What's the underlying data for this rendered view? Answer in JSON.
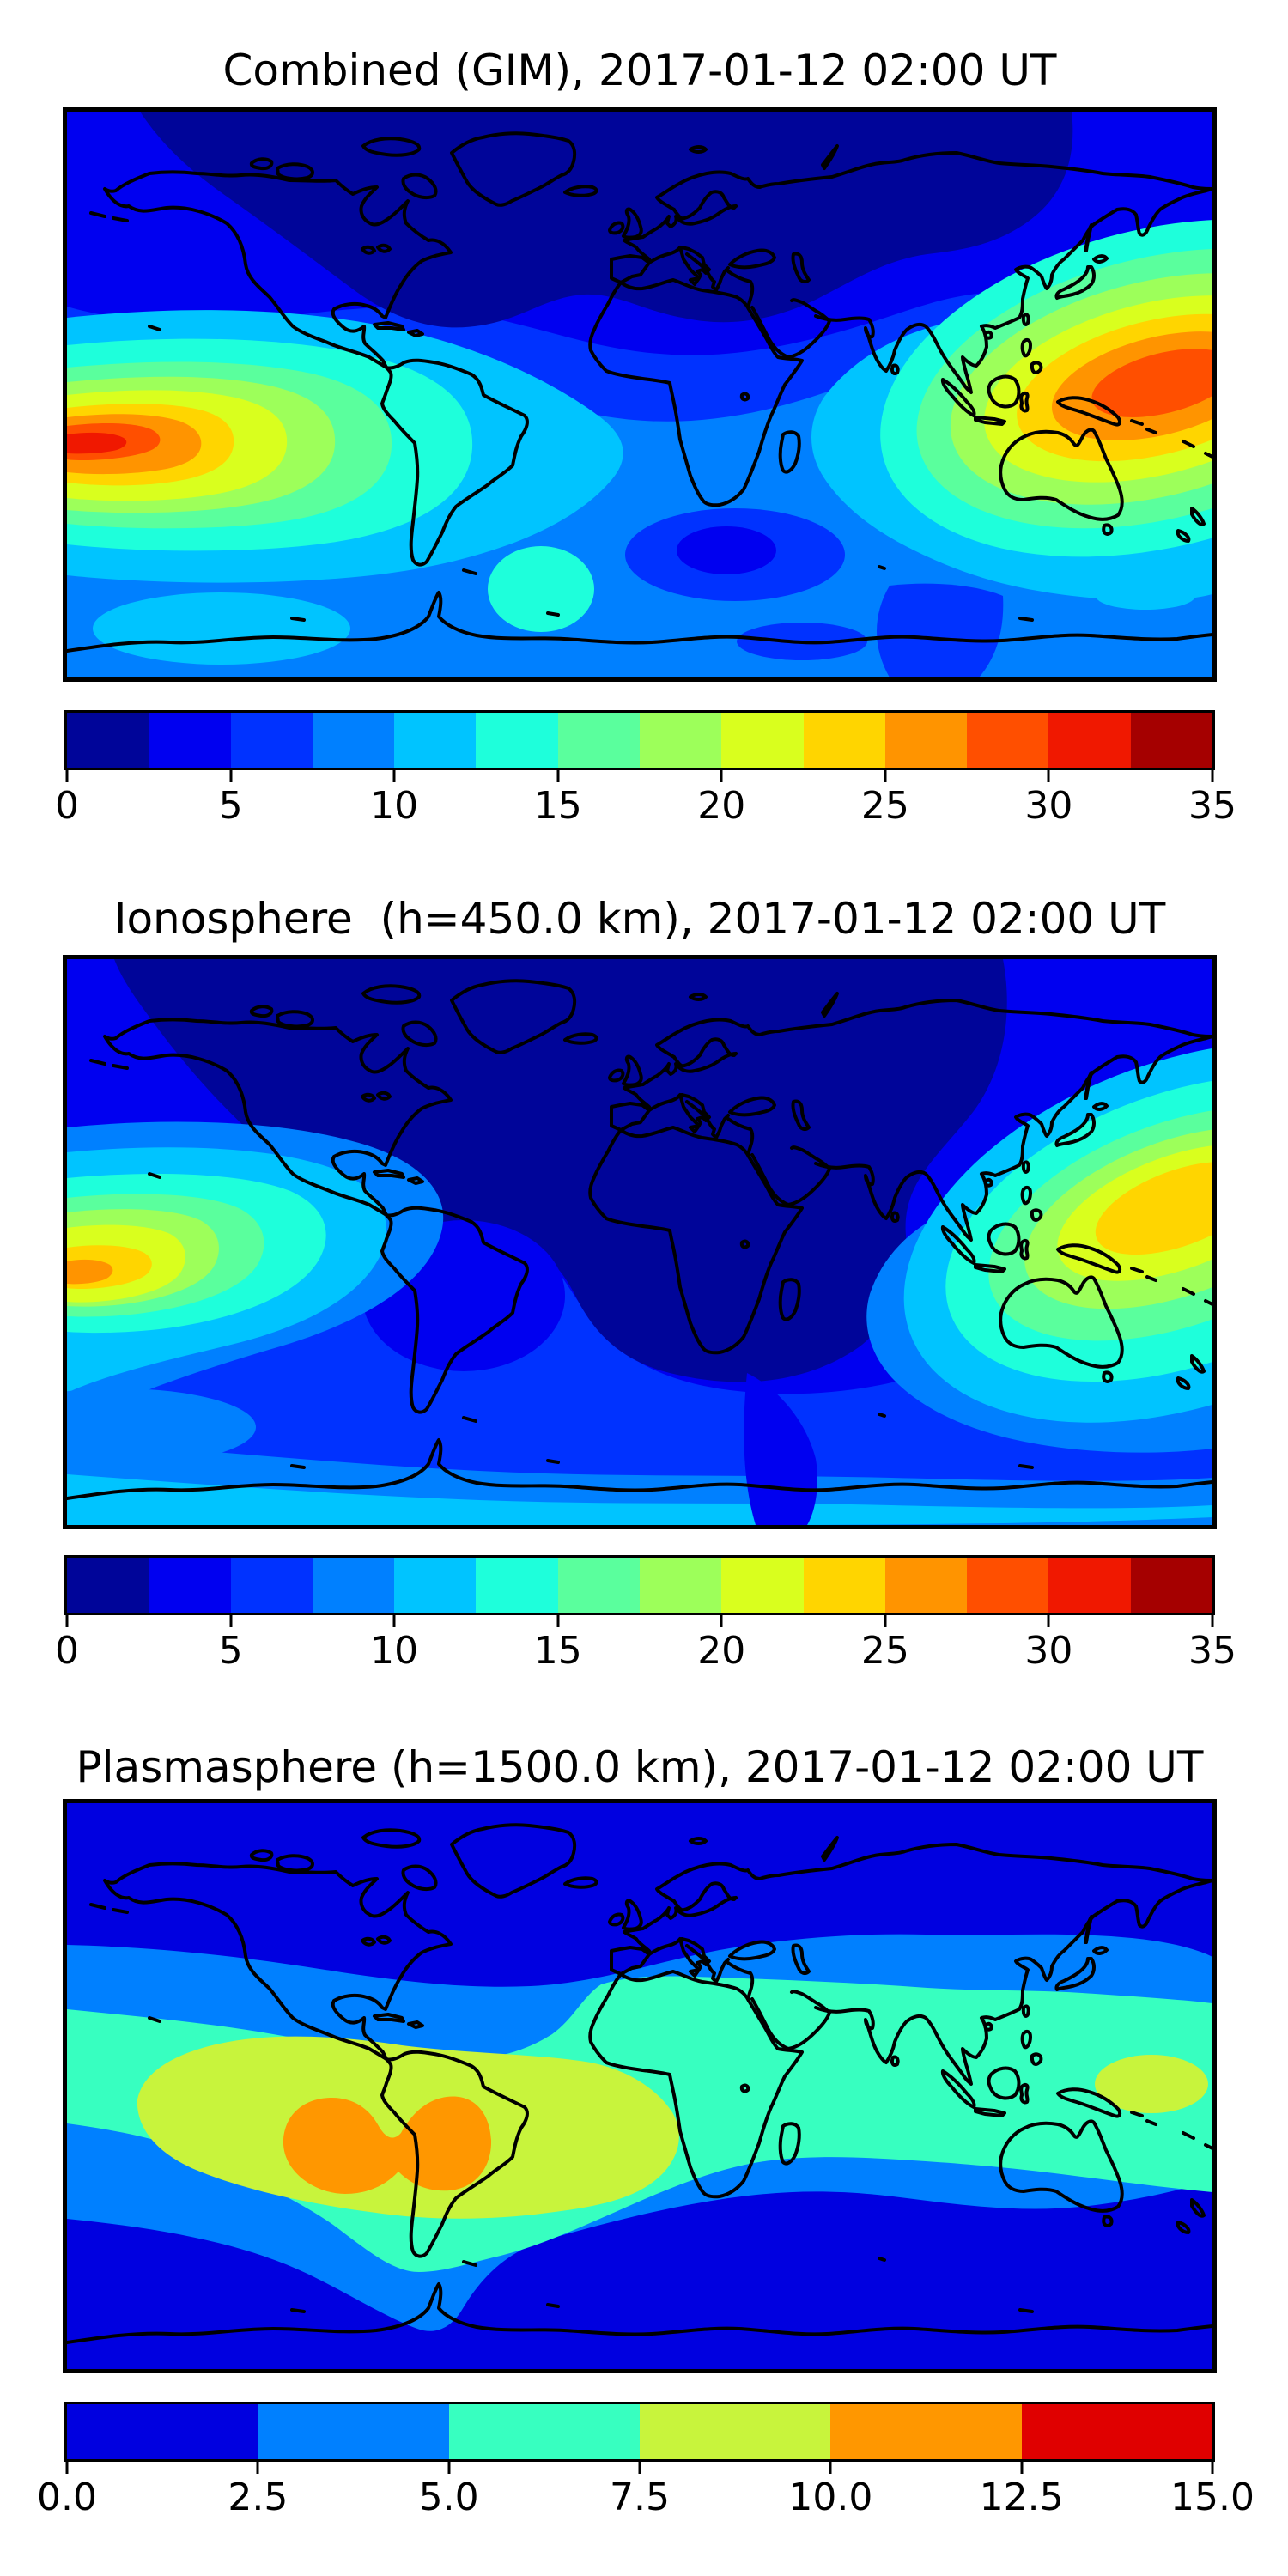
{
  "figure": {
    "background": "#ffffff",
    "frame_color": "#000000",
    "coastline_color": "#000000"
  },
  "panels": [
    {
      "id": "combined-gim",
      "title": "Combined (GIM), 2017-01-12 02:00 UT",
      "colorbar": {
        "orientation": "horizontal",
        "min": 0,
        "max": 35,
        "tick_labels": [
          "0",
          "5",
          "10",
          "15",
          "20",
          "25",
          "30",
          "35"
        ],
        "segment_colors": [
          "#000599",
          "#0000F0",
          "#0032FF",
          "#0080FF",
          "#00C4FF",
          "#1EFFDB",
          "#5AFF9D",
          "#9DFF5A",
          "#D9FF1E",
          "#FFD500",
          "#FF9400",
          "#FF4F00",
          "#F01800",
          "#A50000"
        ]
      }
    },
    {
      "id": "ionosphere",
      "title": "Ionosphere  (h=450.0 km), 2017-01-12 02:00 UT",
      "colorbar": {
        "orientation": "horizontal",
        "min": 0,
        "max": 35,
        "tick_labels": [
          "0",
          "5",
          "10",
          "15",
          "20",
          "25",
          "30",
          "35"
        ],
        "segment_colors": [
          "#000599",
          "#0000F0",
          "#0032FF",
          "#0080FF",
          "#00C4FF",
          "#1EFFDB",
          "#5AFF9D",
          "#9DFF5A",
          "#D9FF1E",
          "#FFD500",
          "#FF9400",
          "#FF4F00",
          "#F01800",
          "#A50000"
        ]
      }
    },
    {
      "id": "plasmasphere",
      "title": "Plasmasphere (h=1500.0 km), 2017-01-12 02:00 UT",
      "colorbar": {
        "orientation": "horizontal",
        "min": 0,
        "max": 15,
        "tick_labels": [
          "0.0",
          "2.5",
          "5.0",
          "7.5",
          "10.0",
          "12.5",
          "15.0"
        ],
        "segment_colors": [
          "#0000E0",
          "#0080FF",
          "#37FFC0",
          "#C8F43C",
          "#FF9700",
          "#E00000"
        ]
      }
    }
  ],
  "chart_data": [
    {
      "type": "heatmap",
      "subtype": "filled_contour_world_map",
      "title": "Combined (GIM), 2017-01-12 02:00 UT",
      "colormap": "jet",
      "value_range": [
        0,
        35
      ],
      "contour_interval": 2.5,
      "colorbar_ticks": [
        0,
        5,
        10,
        15,
        20,
        25,
        30,
        35
      ],
      "map_extent": {
        "lon": [
          -180,
          180
        ],
        "lat": [
          -90,
          90
        ]
      },
      "legend_position": "bottom",
      "grid": false,
      "features": [
        {
          "feature": "main maximum, south-central Pacific (left map edge)",
          "approx_lon": -170,
          "approx_lat": -15,
          "value_band": "30-32.5"
        },
        {
          "feature": "secondary maximum, west Pacific / Philippine Sea",
          "approx_lon": 162,
          "approx_lat": 6,
          "value_band": "27.5-30"
        },
        {
          "feature": "broad minimum over Arctic, North America, North Atlantic, Europe",
          "approx_lon": -30,
          "approx_lat": 70,
          "value_band": "0-2.5"
        },
        {
          "feature": "secondary minimum south of Africa / south Indian Ocean",
          "approx_lon": 28,
          "approx_lat": -50,
          "value_band": "2.5-5"
        }
      ]
    },
    {
      "type": "heatmap",
      "subtype": "filled_contour_world_map",
      "title": "Ionosphere (h=450.0 km), 2017-01-12 02:00 UT",
      "colormap": "jet",
      "value_range": [
        0,
        35
      ],
      "contour_interval": 2.5,
      "colorbar_ticks": [
        0,
        5,
        10,
        15,
        20,
        25,
        30,
        35
      ],
      "map_extent": {
        "lon": [
          -180,
          180
        ],
        "lat": [
          -90,
          90
        ]
      },
      "legend_position": "bottom",
      "grid": false,
      "features": [
        {
          "feature": "maximum, south-central Pacific (left map edge)",
          "approx_lon": -176,
          "approx_lat": -11,
          "value_band": "25-27.5"
        },
        {
          "feature": "maximum, west Pacific east of Philippines",
          "approx_lon": 170,
          "approx_lat": 12,
          "value_band": "22.5-25"
        },
        {
          "feature": "very broad minimum over North America, Atlantic, Europe and Africa",
          "approx_lon": -10,
          "approx_lat": 40,
          "value_band": "0-2.5"
        }
      ]
    },
    {
      "type": "heatmap",
      "subtype": "filled_contour_world_map",
      "title": "Plasmasphere (h=1500.0 km), 2017-01-12 02:00 UT",
      "colormap": "jet",
      "value_range": [
        0,
        15
      ],
      "contour_interval": 2.5,
      "colorbar_ticks": [
        0.0,
        2.5,
        5.0,
        7.5,
        10.0,
        12.5,
        15.0
      ],
      "map_extent": {
        "lon": [
          -180,
          180
        ],
        "lat": [
          -90,
          90
        ]
      },
      "legend_position": "bottom",
      "grid": false,
      "features": [
        {
          "feature": "maximum, two-lobed orange core over South America",
          "approx_lon": -95,
          "approx_lat": -18,
          "value_band": "10-12.5"
        },
        {
          "feature": "second orange lobe east of Andes",
          "approx_lon": -57,
          "approx_lat": -17,
          "value_band": "10-12.5"
        },
        {
          "feature": "yellow-green spot east of Philippines",
          "approx_lon": 161,
          "approx_lat": 1,
          "value_band": "7.5-10"
        },
        {
          "feature": "tropical turquoise belt",
          "approx_lon": 0,
          "approx_lat": -10,
          "value_band": "5-7.5"
        },
        {
          "feature": "polar minima (north and south edges)",
          "approx_lon": 0,
          "approx_lat": 75,
          "value_band": "0-2.5"
        }
      ]
    }
  ]
}
